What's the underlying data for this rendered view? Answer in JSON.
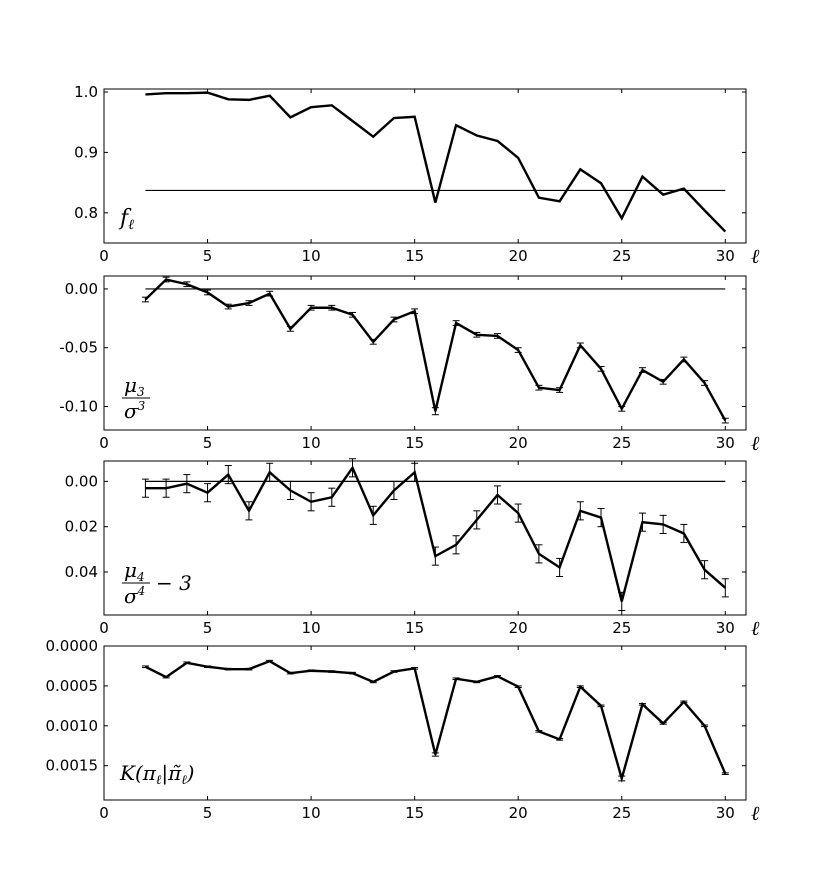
{
  "chart_data": [
    {
      "type": "line",
      "xlabel": "ℓ",
      "ylabel": "",
      "panel_label": [
        "f",
        "ℓ"
      ],
      "xlim": [
        0,
        31
      ],
      "ylim": [
        0.75,
        1.005
      ],
      "xticks": [
        "0",
        "5",
        "10",
        "15",
        "20",
        "25",
        "30"
      ],
      "yticks": [
        {
          "value": 0.8,
          "label": "0.8"
        },
        {
          "value": 0.9,
          "label": "0.9"
        },
        {
          "value": 1.0,
          "label": "1.0"
        }
      ],
      "reference_line": 0.837,
      "series": [
        {
          "x": [
            2,
            3,
            4,
            5,
            6,
            7,
            8,
            9,
            10,
            11,
            12,
            13,
            14,
            15,
            16,
            17,
            18,
            19,
            20,
            21,
            22,
            23,
            24,
            25,
            26,
            27,
            28,
            29,
            30
          ],
          "y": [
            0.996,
            0.998,
            0.998,
            0.999,
            0.988,
            0.987,
            0.994,
            0.958,
            0.975,
            0.978,
            0.952,
            0.926,
            0.957,
            0.959,
            0.817,
            0.945,
            0.928,
            0.919,
            0.891,
            0.825,
            0.819,
            0.872,
            0.849,
            0.791,
            0.86,
            0.83,
            0.84,
            0.804,
            0.769
          ],
          "err": []
        }
      ]
    },
    {
      "type": "line",
      "xlabel": "ℓ",
      "ylabel": "",
      "panel_label": [
        "μ",
        "3",
        "σ",
        "3",
        ""
      ],
      "xlim": [
        0,
        31
      ],
      "ylim": [
        -0.12,
        0.011
      ],
      "xticks": [
        "0",
        "5",
        "10",
        "15",
        "20",
        "25",
        "30"
      ],
      "yticks": [
        {
          "value": 0.0,
          "label": "0.00"
        },
        {
          "value": -0.05,
          "label": "-0.05"
        },
        {
          "value": -0.1,
          "label": "-0.10"
        }
      ],
      "reference_line": 0.0,
      "series": [
        {
          "x": [
            2,
            3,
            4,
            5,
            6,
            7,
            8,
            9,
            10,
            11,
            12,
            13,
            14,
            15,
            16,
            17,
            18,
            19,
            20,
            21,
            22,
            23,
            24,
            25,
            26,
            27,
            28,
            29,
            30
          ],
          "y": [
            -0.009,
            0.008,
            0.004,
            -0.003,
            -0.015,
            -0.012,
            -0.004,
            -0.034,
            -0.016,
            -0.016,
            -0.022,
            -0.045,
            -0.026,
            -0.019,
            -0.104,
            -0.029,
            -0.039,
            -0.04,
            -0.052,
            -0.084,
            -0.086,
            -0.048,
            -0.068,
            -0.102,
            -0.069,
            -0.079,
            -0.06,
            -0.08,
            -0.112
          ],
          "err": [
            0.002,
            0.002,
            0.002,
            0.002,
            0.002,
            0.002,
            0.002,
            0.002,
            0.002,
            0.002,
            0.002,
            0.002,
            0.002,
            0.002,
            0.003,
            0.002,
            0.002,
            0.002,
            0.002,
            0.002,
            0.002,
            0.002,
            0.002,
            0.002,
            0.002,
            0.002,
            0.002,
            0.002,
            0.002
          ]
        }
      ]
    },
    {
      "type": "line",
      "xlabel": "ℓ",
      "ylabel": "",
      "panel_label": [
        "μ",
        "4",
        "σ",
        "4",
        "− 3"
      ],
      "xlim": [
        0,
        31
      ],
      "ylim": [
        0.059,
        -0.009
      ],
      "xticks": [
        "0",
        "5",
        "10",
        "15",
        "20",
        "25",
        "30"
      ],
      "yticks": [
        {
          "value": 0.0,
          "label": "0.00"
        },
        {
          "value": 0.02,
          "label": "0.02"
        },
        {
          "value": 0.04,
          "label": "0.04"
        }
      ],
      "reference_line": 0.0,
      "series": [
        {
          "x": [
            2,
            3,
            4,
            5,
            6,
            7,
            8,
            9,
            10,
            11,
            12,
            13,
            14,
            15,
            16,
            17,
            18,
            19,
            20,
            21,
            22,
            23,
            24,
            25,
            26,
            27,
            28,
            29,
            30
          ],
          "y": [
            0.003,
            0.003,
            0.001,
            0.005,
            -0.003,
            0.013,
            -0.004,
            0.004,
            0.009,
            0.007,
            -0.006,
            0.015,
            0.004,
            -0.004,
            0.033,
            0.028,
            0.017,
            0.006,
            0.014,
            0.032,
            0.038,
            0.013,
            0.016,
            0.053,
            0.018,
            0.019,
            0.023,
            0.039,
            0.047
          ],
          "err": [
            0.004,
            0.004,
            0.004,
            0.004,
            0.004,
            0.004,
            0.004,
            0.004,
            0.004,
            0.004,
            0.004,
            0.004,
            0.004,
            0.004,
            0.004,
            0.004,
            0.004,
            0.004,
            0.004,
            0.004,
            0.004,
            0.004,
            0.004,
            0.004,
            0.004,
            0.004,
            0.004,
            0.004,
            0.004
          ]
        }
      ]
    },
    {
      "type": "line",
      "xlabel": "ℓ",
      "ylabel": "",
      "panel_label": [
        "K",
        "(π",
        "ℓ",
        "|",
        "π̃",
        "ℓ",
        ")"
      ],
      "xlim": [
        0,
        31
      ],
      "ylim": [
        0.00193,
        0.0
      ],
      "xticks": [
        "0",
        "5",
        "10",
        "15",
        "20",
        "25",
        "30"
      ],
      "yticks": [
        {
          "value": 0.0,
          "label": "0.0000"
        },
        {
          "value": 0.0005,
          "label": "0.0005"
        },
        {
          "value": 0.001,
          "label": "0.0010"
        },
        {
          "value": 0.0015,
          "label": "0.0015"
        }
      ],
      "reference_line": null,
      "series": [
        {
          "x": [
            2,
            3,
            4,
            5,
            6,
            7,
            8,
            9,
            10,
            11,
            12,
            13,
            14,
            15,
            16,
            17,
            18,
            19,
            20,
            21,
            22,
            23,
            24,
            25,
            26,
            27,
            28,
            29,
            30
          ],
          "y": [
            0.00026,
            0.00039,
            0.00021,
            0.00026,
            0.00029,
            0.00029,
            0.00019,
            0.00034,
            0.00031,
            0.00032,
            0.00034,
            0.00045,
            0.00032,
            0.00028,
            0.00136,
            0.00041,
            0.00045,
            0.00038,
            0.00051,
            0.00107,
            0.00117,
            0.00051,
            0.00075,
            0.00166,
            0.00073,
            0.00097,
            0.0007,
            0.001,
            0.0016
          ],
          "err": [
            1e-05,
            1e-05,
            1e-05,
            1e-05,
            1e-05,
            1e-05,
            1e-05,
            1e-05,
            1e-05,
            1e-05,
            1e-05,
            1e-05,
            1e-05,
            1e-05,
            2e-05,
            1e-05,
            1e-05,
            1e-05,
            1e-05,
            1e-05,
            1e-05,
            1e-05,
            1e-05,
            3e-05,
            1e-05,
            1e-05,
            1e-05,
            1e-05,
            1e-05
          ]
        }
      ]
    }
  ]
}
